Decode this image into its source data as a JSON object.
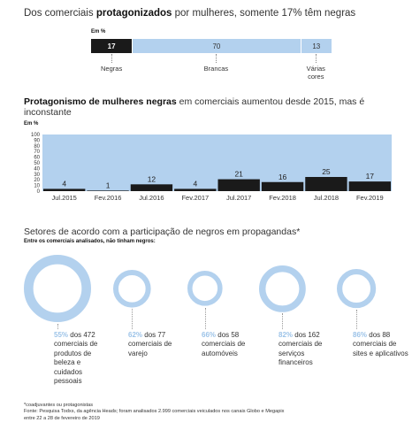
{
  "section1": {
    "title_pre": "Dos comerciais ",
    "title_bold": "protagonizados",
    "title_post": " por mulheres, somente 17% têm negras",
    "unit": "Em %",
    "labels": [
      "Negras",
      "Brancas",
      "Várias\ncores"
    ]
  },
  "section2": {
    "title_bold": "Protagonismo de mulheres negras",
    "title_post": " em comerciais aumentou desde 2015, mas é inconstante",
    "unit": "Em %"
  },
  "section3": {
    "title": "Setores de acordo com a participação de negros em propagandas*",
    "subtitle": "Entre os comerciais analisados, não tinham negros:",
    "items": [
      {
        "pct": "55%",
        "text": "dos 472 comerciais de produtos de beleza e cuidados pessoais"
      },
      {
        "pct": "62%",
        "text": "dos 77 comerciais de varejo"
      },
      {
        "pct": "66%",
        "text": "dos 58 comerciais de automóveis"
      },
      {
        "pct": "82%",
        "text": "dos 162 comerciais de serviços financeiros"
      },
      {
        "pct": "86%",
        "text": "dos 88 comerciais de sites e aplicativos"
      }
    ]
  },
  "notes": {
    "line1": "*coadjuvantes ou protagonistas",
    "line2": "Fonte: Pesquisa Todxs, da agência Heads; foram analisados 2.999 comerciais veiculados nos canais Globo e Megapix entre 22 a 28 de fevereiro de 2019"
  },
  "colors": {
    "black": "#1a1a1a",
    "blue": "#b3d1ee",
    "pct_blue": "#9cc3e8"
  },
  "chart_data": [
    {
      "type": "bar",
      "stacked": true,
      "categories": [
        "Negras",
        "Brancas",
        "Várias cores"
      ],
      "values": [
        17,
        70,
        13
      ],
      "ylabel": "Em %"
    },
    {
      "type": "bar",
      "categories": [
        "Jul.2015",
        "Fev.2016",
        "Jul.2016",
        "Fev.2017",
        "Jul.2017",
        "Fev.2018",
        "Jul.2018",
        "Fev.2019"
      ],
      "values": [
        4,
        1,
        12,
        4,
        21,
        16,
        25,
        17
      ],
      "ylim": [
        0,
        100
      ],
      "yticks": [
        0,
        10,
        20,
        30,
        40,
        50,
        60,
        70,
        80,
        90,
        100
      ],
      "ylabel": "Em %"
    },
    {
      "type": "pie",
      "donut": true,
      "categories": [
        "produtos de beleza e cuidados pessoais",
        "varejo",
        "automóveis",
        "serviços financeiros",
        "sites e aplicativos"
      ],
      "values": [
        55,
        62,
        66,
        82,
        86
      ],
      "totals": [
        472,
        77,
        58,
        162,
        88
      ]
    }
  ]
}
